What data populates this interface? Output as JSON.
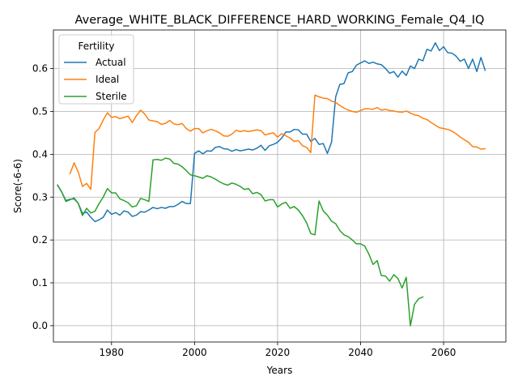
{
  "chart_data": {
    "type": "line",
    "title": "Average_WHITE_BLACK_DIFFERENCE_HARD_WORKING_Female_Q4_IQ",
    "xlabel": "Years",
    "ylabel": "Score(-6-6)",
    "xlim": [
      1966,
      2075
    ],
    "ylim": [
      -0.038,
      0.69
    ],
    "x_ticks": [
      1980,
      2000,
      2020,
      2040,
      2060
    ],
    "y_ticks": [
      0.0,
      0.1,
      0.2,
      0.3,
      0.4,
      0.5,
      0.6
    ],
    "x_tick_labels": [
      "1980",
      "2000",
      "2020",
      "2040",
      "2060"
    ],
    "y_tick_labels": [
      "0.0",
      "0.1",
      "0.2",
      "0.3",
      "0.4",
      "0.5",
      "0.6"
    ],
    "grid": true,
    "legend": {
      "title": "Fertility",
      "position": "upper left"
    },
    "series": [
      {
        "name": "Actual",
        "color": "#1f77b4",
        "x": [
          1967,
          1968,
          1969,
          1970,
          1971,
          1972,
          1973,
          1974,
          1975,
          1976,
          1977,
          1978,
          1979,
          1980,
          1981,
          1982,
          1983,
          1984,
          1985,
          1986,
          1987,
          1988,
          1989,
          1990,
          1991,
          1992,
          1993,
          1994,
          1995,
          1996,
          1997,
          1998,
          1999,
          2000,
          2001,
          2002,
          2003,
          2004,
          2005,
          2006,
          2007,
          2008,
          2009,
          2010,
          2011,
          2012,
          2013,
          2014,
          2015,
          2016,
          2017,
          2018,
          2019,
          2020,
          2021,
          2022,
          2023,
          2024,
          2025,
          2026,
          2027,
          2028,
          2029,
          2030,
          2031,
          2032,
          2033,
          2034,
          2035,
          2036,
          2037,
          2038,
          2039,
          2040,
          2041,
          2042,
          2043,
          2044,
          2045,
          2046,
          2047,
          2048,
          2049,
          2050,
          2051,
          2052,
          2053,
          2054,
          2055,
          2056,
          2057,
          2058,
          2059,
          2060,
          2061,
          2062,
          2063,
          2064,
          2065,
          2066,
          2067,
          2068,
          2069,
          2070
        ],
        "y": [
          0.328,
          0.312,
          0.292,
          0.295,
          0.296,
          0.285,
          0.262,
          0.265,
          0.253,
          0.243,
          0.247,
          0.253,
          0.27,
          0.26,
          0.264,
          0.258,
          0.268,
          0.265,
          0.255,
          0.258,
          0.266,
          0.265,
          0.27,
          0.276,
          0.273,
          0.276,
          0.274,
          0.278,
          0.278,
          0.283,
          0.29,
          0.285,
          0.285,
          0.402,
          0.408,
          0.401,
          0.408,
          0.407,
          0.416,
          0.418,
          0.413,
          0.412,
          0.407,
          0.411,
          0.408,
          0.41,
          0.412,
          0.41,
          0.414,
          0.421,
          0.409,
          0.42,
          0.423,
          0.428,
          0.438,
          0.452,
          0.452,
          0.458,
          0.457,
          0.447,
          0.447,
          0.43,
          0.437,
          0.423,
          0.425,
          0.402,
          0.428,
          0.534,
          0.563,
          0.565,
          0.59,
          0.593,
          0.608,
          0.613,
          0.618,
          0.612,
          0.615,
          0.611,
          0.609,
          0.6,
          0.589,
          0.593,
          0.58,
          0.594,
          0.584,
          0.606,
          0.6,
          0.622,
          0.618,
          0.645,
          0.641,
          0.66,
          0.642,
          0.651,
          0.637,
          0.636,
          0.629,
          0.617,
          0.622,
          0.6,
          0.622,
          0.593,
          0.626,
          0.596
        ]
      },
      {
        "name": "Ideal",
        "color": "#ff7f0e",
        "x": [
          1970,
          1971,
          1972,
          1973,
          1974,
          1975,
          1976,
          1977,
          1978,
          1979,
          1980,
          1981,
          1982,
          1983,
          1984,
          1985,
          1986,
          1987,
          1988,
          1989,
          1990,
          1991,
          1992,
          1993,
          1994,
          1995,
          1996,
          1997,
          1998,
          1999,
          2000,
          2001,
          2002,
          2003,
          2004,
          2005,
          2006,
          2007,
          2008,
          2009,
          2010,
          2011,
          2012,
          2013,
          2014,
          2015,
          2016,
          2017,
          2018,
          2019,
          2020,
          2021,
          2022,
          2023,
          2024,
          2025,
          2026,
          2027,
          2028,
          2029,
          2030,
          2031,
          2032,
          2033,
          2034,
          2035,
          2036,
          2037,
          2038,
          2039,
          2040,
          2041,
          2042,
          2043,
          2044,
          2045,
          2046,
          2047,
          2048,
          2049,
          2050,
          2051,
          2052,
          2053,
          2054,
          2055,
          2056,
          2057,
          2058,
          2059,
          2060,
          2061,
          2062,
          2063,
          2064,
          2065,
          2066,
          2067,
          2068,
          2069,
          2070
        ],
        "y": [
          0.355,
          0.38,
          0.358,
          0.325,
          0.332,
          0.318,
          0.451,
          0.46,
          0.48,
          0.497,
          0.486,
          0.488,
          0.483,
          0.486,
          0.489,
          0.474,
          0.49,
          0.503,
          0.494,
          0.48,
          0.478,
          0.476,
          0.47,
          0.472,
          0.479,
          0.471,
          0.469,
          0.472,
          0.46,
          0.454,
          0.46,
          0.46,
          0.45,
          0.455,
          0.458,
          0.455,
          0.45,
          0.443,
          0.442,
          0.447,
          0.456,
          0.453,
          0.455,
          0.453,
          0.455,
          0.457,
          0.455,
          0.445,
          0.448,
          0.45,
          0.44,
          0.448,
          0.443,
          0.438,
          0.43,
          0.432,
          0.42,
          0.416,
          0.404,
          0.538,
          0.534,
          0.531,
          0.53,
          0.524,
          0.521,
          0.514,
          0.508,
          0.503,
          0.5,
          0.498,
          0.502,
          0.506,
          0.506,
          0.505,
          0.509,
          0.503,
          0.505,
          0.502,
          0.501,
          0.499,
          0.498,
          0.501,
          0.496,
          0.492,
          0.49,
          0.484,
          0.481,
          0.474,
          0.468,
          0.462,
          0.46,
          0.458,
          0.454,
          0.448,
          0.44,
          0.434,
          0.428,
          0.418,
          0.417,
          0.412,
          0.413
        ]
      },
      {
        "name": "Sterile",
        "color": "#2ca02c",
        "x": [
          1967,
          1968,
          1969,
          1970,
          1971,
          1972,
          1973,
          1974,
          1975,
          1976,
          1977,
          1978,
          1979,
          1980,
          1981,
          1982,
          1983,
          1984,
          1985,
          1986,
          1987,
          1988,
          1989,
          1990,
          1991,
          1992,
          1993,
          1994,
          1995,
          1996,
          1997,
          1998,
          1999,
          2000,
          2001,
          2002,
          2003,
          2004,
          2005,
          2006,
          2007,
          2008,
          2009,
          2010,
          2011,
          2012,
          2013,
          2014,
          2015,
          2016,
          2017,
          2018,
          2019,
          2020,
          2021,
          2022,
          2023,
          2024,
          2025,
          2026,
          2027,
          2028,
          2029,
          2030,
          2031,
          2032,
          2033,
          2034,
          2035,
          2036,
          2037,
          2038,
          2039,
          2040,
          2041,
          2042,
          2043,
          2044,
          2045,
          2046,
          2047,
          2048,
          2049,
          2050,
          2051,
          2052,
          2053,
          2054,
          2055
        ],
        "y": [
          0.328,
          0.312,
          0.29,
          0.294,
          0.298,
          0.285,
          0.257,
          0.274,
          0.263,
          0.267,
          0.285,
          0.3,
          0.32,
          0.31,
          0.31,
          0.296,
          0.292,
          0.287,
          0.277,
          0.28,
          0.297,
          0.294,
          0.29,
          0.387,
          0.388,
          0.386,
          0.391,
          0.389,
          0.379,
          0.377,
          0.371,
          0.362,
          0.352,
          0.35,
          0.347,
          0.344,
          0.35,
          0.347,
          0.342,
          0.336,
          0.331,
          0.328,
          0.333,
          0.33,
          0.325,
          0.318,
          0.32,
          0.308,
          0.311,
          0.306,
          0.291,
          0.294,
          0.294,
          0.277,
          0.284,
          0.288,
          0.274,
          0.278,
          0.27,
          0.257,
          0.24,
          0.215,
          0.212,
          0.291,
          0.268,
          0.258,
          0.244,
          0.238,
          0.222,
          0.212,
          0.208,
          0.2,
          0.191,
          0.191,
          0.186,
          0.167,
          0.143,
          0.152,
          0.117,
          0.116,
          0.104,
          0.119,
          0.11,
          0.088,
          0.113,
          0.0,
          0.05,
          0.063,
          0.067
        ]
      }
    ]
  }
}
